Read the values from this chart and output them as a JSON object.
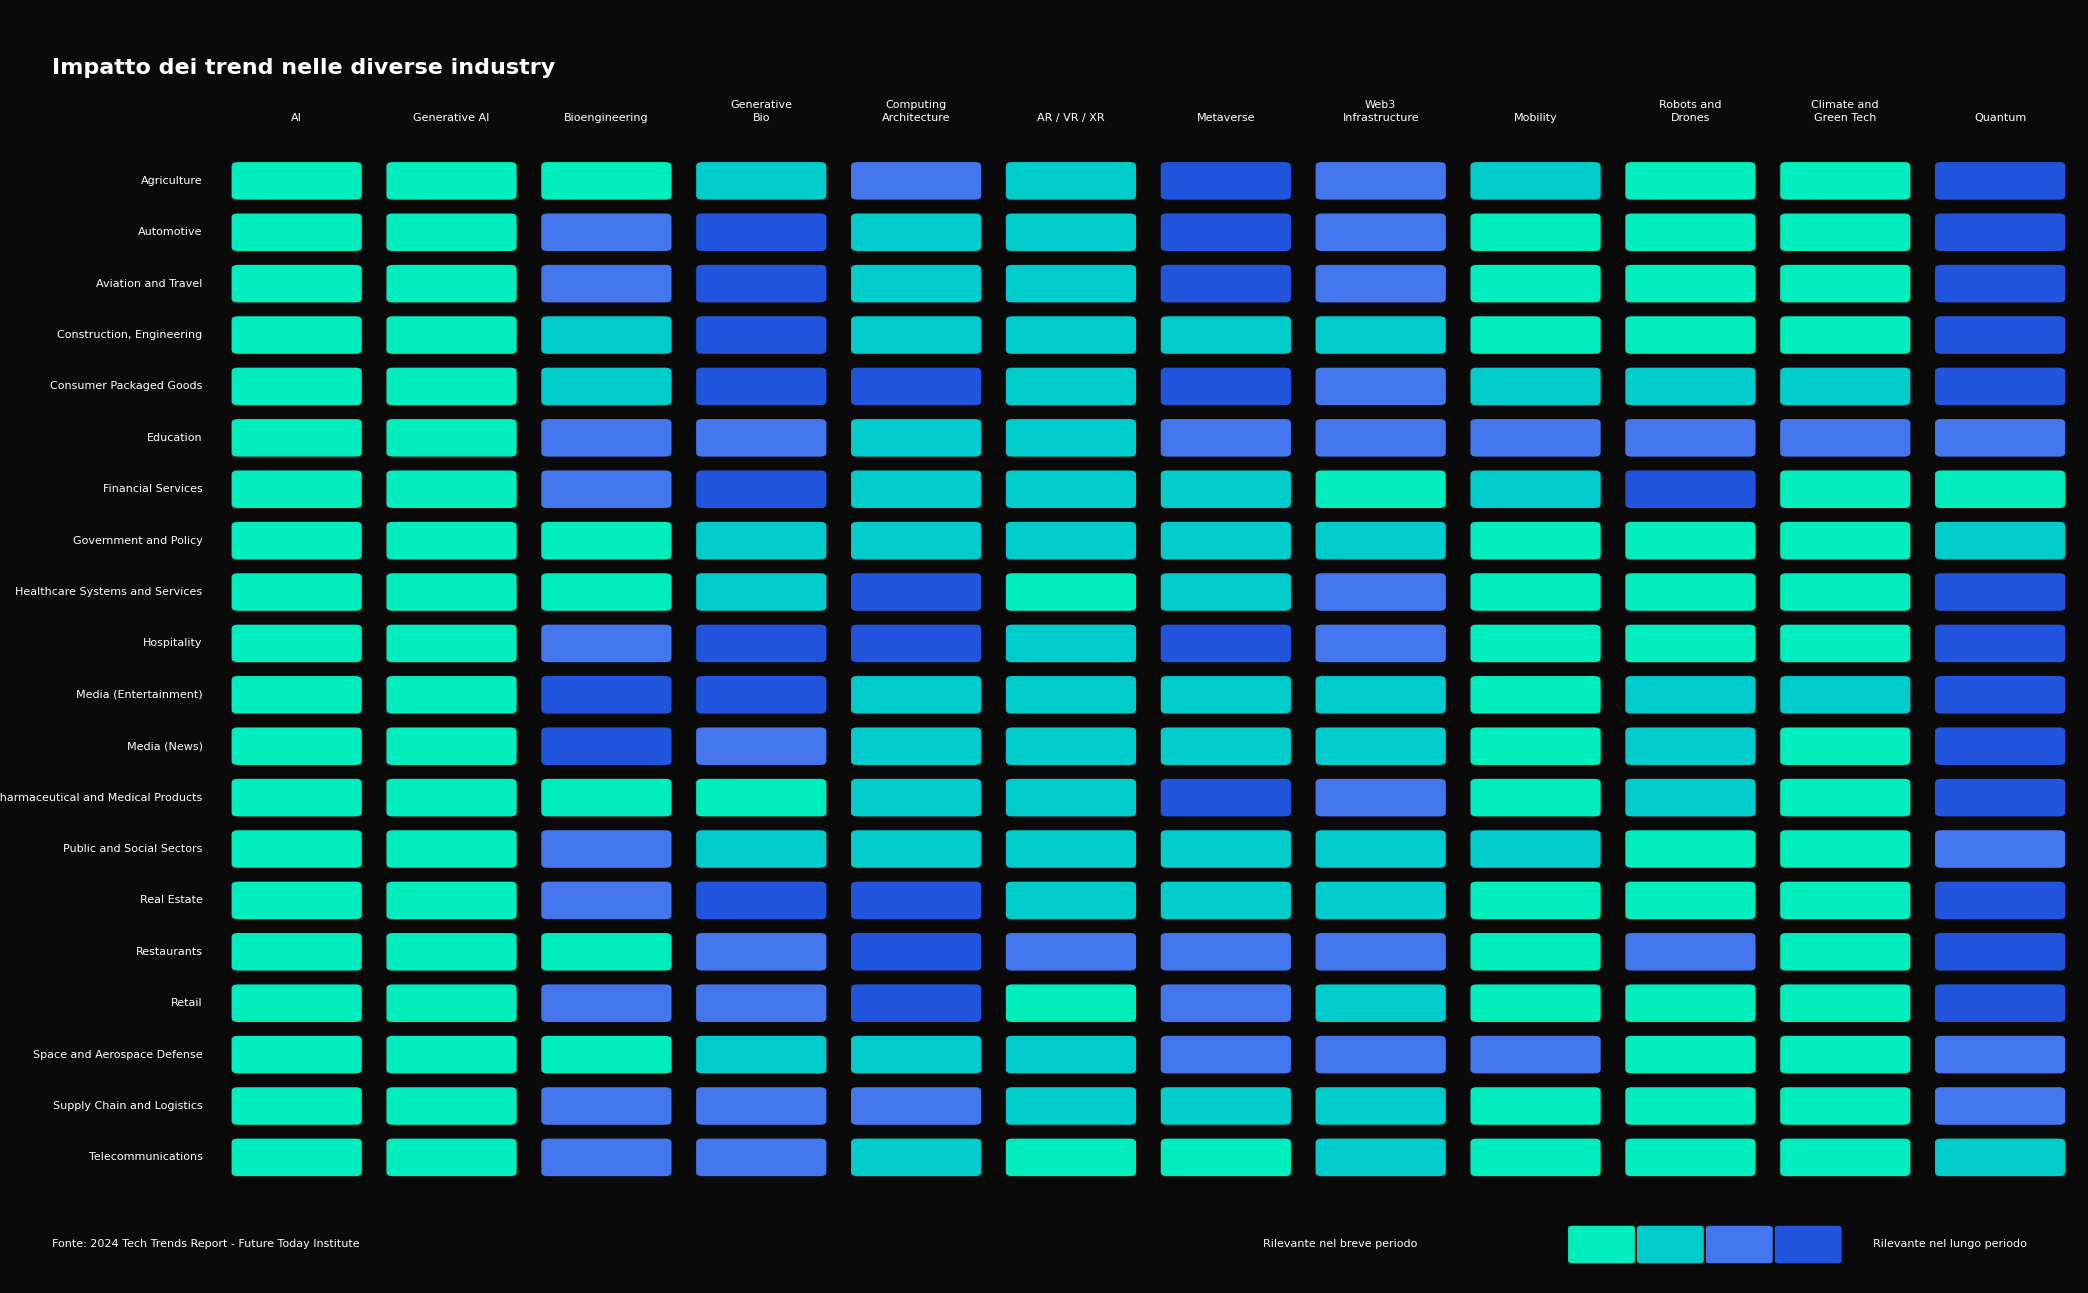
{
  "title": "Impatto dei trend nelle diverse industry",
  "background_color": "#0a0a0a",
  "text_color": "#ffffff",
  "source_text": "Fonte: 2024 Tech Trends Report - Future Today Institute",
  "legend_short": "Rilevante nel breve periodo",
  "legend_long": "Rilevante nel lungo periodo",
  "columns": [
    "AI",
    "Generative AI",
    "Bioengineering",
    "Generative\nBio",
    "Computing\nArchitecture",
    "AR / VR / XR",
    "Metaverse",
    "Web3\nInfrastructure",
    "Mobility",
    "Robots and\nDrones",
    "Climate and\nGreen Tech",
    "Quantum"
  ],
  "rows": [
    "Agriculture",
    "Automotive",
    "Aviation and Travel",
    "Construction, Engineering",
    "Consumer Packaged Goods",
    "Education",
    "Financial Services",
    "Government and Policy",
    "Healthcare Systems and Services",
    "Hospitality",
    "Media (Entertainment)",
    "Media (News)",
    "Pharmaceutical and Medical Products",
    "Public and Social Sectors",
    "Real Estate",
    "Restaurants",
    "Retail",
    "Space and Aerospace Defense",
    "Supply Chain and Logistics",
    "Telecommunications"
  ],
  "cell_colors": [
    [
      "#00EDBE",
      "#00EDBE",
      "#00EDBE",
      "#00CCCC",
      "#4477EE",
      "#00CCCC",
      "#2255DD",
      "#4477EE",
      "#00CCCC",
      "#00EDBE",
      "#00EDBE",
      "#2255DD"
    ],
    [
      "#00EDBE",
      "#00EDBE",
      "#4477EE",
      "#2255DD",
      "#00CCCC",
      "#00CCCC",
      "#2255DD",
      "#4477EE",
      "#00EDBE",
      "#00EDBE",
      "#00EDBE",
      "#2255DD"
    ],
    [
      "#00EDBE",
      "#00EDBE",
      "#4477EE",
      "#2255DD",
      "#00CCCC",
      "#00CCCC",
      "#2255DD",
      "#4477EE",
      "#00EDBE",
      "#00EDBE",
      "#00EDBE",
      "#2255DD"
    ],
    [
      "#00EDBE",
      "#00EDBE",
      "#00CCCC",
      "#2255DD",
      "#00CCCC",
      "#00CCCC",
      "#00CCCC",
      "#00CCCC",
      "#00EDBE",
      "#00EDBE",
      "#00EDBE",
      "#2255DD"
    ],
    [
      "#00EDBE",
      "#00EDBE",
      "#00CCCC",
      "#2255DD",
      "#2255DD",
      "#00CCCC",
      "#2255DD",
      "#4477EE",
      "#00CCCC",
      "#00CCCC",
      "#00CCCC",
      "#2255DD"
    ],
    [
      "#00EDBE",
      "#00EDBE",
      "#4477EE",
      "#4477EE",
      "#00CCCC",
      "#00CCCC",
      "#4477EE",
      "#4477EE",
      "#4477EE",
      "#4477EE",
      "#4477EE",
      "#4477EE"
    ],
    [
      "#00EDBE",
      "#00EDBE",
      "#4477EE",
      "#2255DD",
      "#00CCCC",
      "#00CCCC",
      "#00CCCC",
      "#00EDBE",
      "#00CCCC",
      "#2255DD",
      "#00EDBE",
      "#00EDBE"
    ],
    [
      "#00EDBE",
      "#00EDBE",
      "#00EDBE",
      "#00CCCC",
      "#00CCCC",
      "#00CCCC",
      "#00CCCC",
      "#00CCCC",
      "#00EDBE",
      "#00EDBE",
      "#00EDBE",
      "#00CCCC"
    ],
    [
      "#00EDBE",
      "#00EDBE",
      "#00EDBE",
      "#00CCCC",
      "#2255DD",
      "#00EDBE",
      "#00CCCC",
      "#4477EE",
      "#00EDBE",
      "#00EDBE",
      "#00EDBE",
      "#2255DD"
    ],
    [
      "#00EDBE",
      "#00EDBE",
      "#4477EE",
      "#2255DD",
      "#2255DD",
      "#00CCCC",
      "#2255DD",
      "#4477EE",
      "#00EDBE",
      "#00EDBE",
      "#00EDBE",
      "#2255DD"
    ],
    [
      "#00EDBE",
      "#00EDBE",
      "#2255DD",
      "#2255DD",
      "#00CCCC",
      "#00CCCC",
      "#00CCCC",
      "#00CCCC",
      "#00EDBE",
      "#00CCCC",
      "#00CCCC",
      "#2255DD"
    ],
    [
      "#00EDBE",
      "#00EDBE",
      "#2255DD",
      "#4477EE",
      "#00CCCC",
      "#00CCCC",
      "#00CCCC",
      "#00CCCC",
      "#00EDBE",
      "#00CCCC",
      "#00EDBE",
      "#2255DD"
    ],
    [
      "#00EDBE",
      "#00EDBE",
      "#00EDBE",
      "#00EDBE",
      "#00CCCC",
      "#00CCCC",
      "#2255DD",
      "#4477EE",
      "#00EDBE",
      "#00CCCC",
      "#00EDBE",
      "#2255DD"
    ],
    [
      "#00EDBE",
      "#00EDBE",
      "#4477EE",
      "#00CCCC",
      "#00CCCC",
      "#00CCCC",
      "#00CCCC",
      "#00CCCC",
      "#00CCCC",
      "#00EDBE",
      "#00EDBE",
      "#4477EE"
    ],
    [
      "#00EDBE",
      "#00EDBE",
      "#4477EE",
      "#2255DD",
      "#2255DD",
      "#00CCCC",
      "#00CCCC",
      "#00CCCC",
      "#00EDBE",
      "#00EDBE",
      "#00EDBE",
      "#2255DD"
    ],
    [
      "#00EDBE",
      "#00EDBE",
      "#00EDBE",
      "#4477EE",
      "#2255DD",
      "#4477EE",
      "#4477EE",
      "#4477EE",
      "#00EDBE",
      "#4477EE",
      "#00EDBE",
      "#2255DD"
    ],
    [
      "#00EDBE",
      "#00EDBE",
      "#4477EE",
      "#4477EE",
      "#2255DD",
      "#00EDBE",
      "#4477EE",
      "#00CCCC",
      "#00EDBE",
      "#00EDBE",
      "#00EDBE",
      "#2255DD"
    ],
    [
      "#00EDBE",
      "#00EDBE",
      "#00EDBE",
      "#00CCCC",
      "#00CCCC",
      "#00CCCC",
      "#4477EE",
      "#4477EE",
      "#4477EE",
      "#00EDBE",
      "#00EDBE",
      "#4477EE"
    ],
    [
      "#00EDBE",
      "#00EDBE",
      "#4477EE",
      "#4477EE",
      "#4477EE",
      "#00CCCC",
      "#00CCCC",
      "#00CCCC",
      "#00EDBE",
      "#00EDBE",
      "#00EDBE",
      "#4477EE"
    ],
    [
      "#00EDBE",
      "#00EDBE",
      "#4477EE",
      "#4477EE",
      "#00CCCC",
      "#00EDBE",
      "#00EDBE",
      "#00CCCC",
      "#00EDBE",
      "#00EDBE",
      "#00EDBE",
      "#00CCCC"
    ]
  ],
  "legend_colors": [
    "#00EDBE",
    "#00CCCC",
    "#4477EE",
    "#2255DD"
  ]
}
